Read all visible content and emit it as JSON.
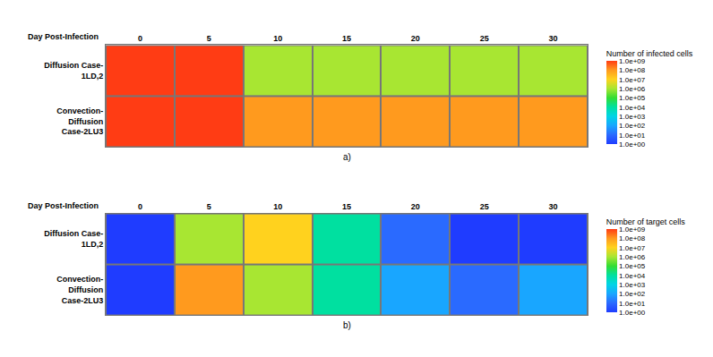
{
  "chart_data": [
    {
      "type": "heatmap",
      "label": "a)",
      "corner_label": "Day Post-Infection",
      "log": true,
      "x": [
        0,
        5,
        10,
        15,
        20,
        25,
        30
      ],
      "rows": [
        [
          "Diffusion Case-",
          "1LD,2"
        ],
        [
          "Convection-",
          "Diffusion",
          "Case-2LU3"
        ]
      ],
      "z": [
        [
          1000000000,
          1000000000,
          1000000,
          1000000,
          1000000,
          1000000,
          1000000
        ],
        [
          1000000000,
          1000000000,
          100000000,
          100000000,
          100000000,
          100000000,
          100000000
        ]
      ],
      "colorbar": {
        "title": "Number of infected cells",
        "range": [
          1,
          1000000000
        ],
        "ticks": [
          {
            "value": 1000000000,
            "label": "1.0e+09"
          },
          {
            "value": 100000000,
            "label": "1.0e+08"
          },
          {
            "value": 10000000,
            "label": "1.0e+07"
          },
          {
            "value": 1000000,
            "label": "1.0e+06"
          },
          {
            "value": 100000,
            "label": "1.0e+05"
          },
          {
            "value": 10000,
            "label": "1.0e+04"
          },
          {
            "value": 1000,
            "label": "1.0e+03"
          },
          {
            "value": 100,
            "label": "1.0e+02"
          },
          {
            "value": 10,
            "label": "1.0e+01"
          },
          {
            "value": 1,
            "label": "1.0e+00"
          }
        ]
      }
    },
    {
      "type": "heatmap",
      "label": "b)",
      "corner_label": "Day Post-Infection",
      "log": true,
      "x": [
        0,
        5,
        10,
        15,
        20,
        25,
        30
      ],
      "rows": [
        [
          "Diffusion Case-",
          "1LD,2"
        ],
        [
          "Convection-",
          "Diffusion",
          "Case-2LU3"
        ]
      ],
      "z": [
        [
          1,
          1000000,
          10000000,
          10000,
          10,
          1,
          1
        ],
        [
          1,
          100000000,
          1000000,
          10000,
          100,
          10,
          100
        ]
      ],
      "colorbar": {
        "title": "Number of target cells",
        "range": [
          1,
          1000000000
        ],
        "ticks": [
          {
            "value": 1000000000,
            "label": "1.0e+09"
          },
          {
            "value": 100000000,
            "label": "1.0e+08"
          },
          {
            "value": 10000000,
            "label": "1.0e+07"
          },
          {
            "value": 1000000,
            "label": "1.0e+06"
          },
          {
            "value": 100000,
            "label": "1.0e+05"
          },
          {
            "value": 10000,
            "label": "1.0e+04"
          },
          {
            "value": 1000,
            "label": "1.0e+03"
          },
          {
            "value": 100,
            "label": "1.0e+02"
          },
          {
            "value": 10,
            "label": "1.0e+01"
          },
          {
            "value": 1,
            "label": "1.0e+00"
          }
        ]
      }
    }
  ]
}
